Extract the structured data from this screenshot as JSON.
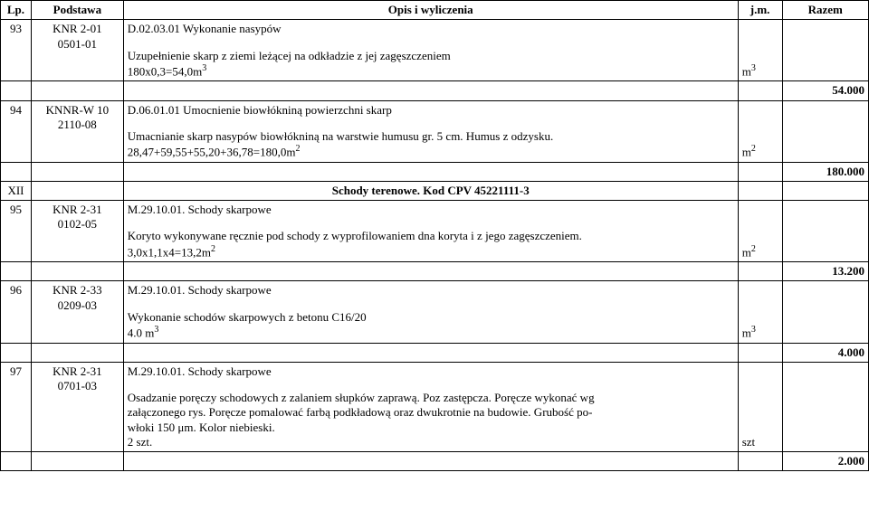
{
  "headers": {
    "lp": "Lp.",
    "podstawa": "Podstawa",
    "opis": "Opis i wyliczenia",
    "jm": "j.m.",
    "razem": "Razem"
  },
  "rows": [
    {
      "lp": "93",
      "podstawa_line1": "KNR 2-01",
      "podstawa_line2": "0501-01",
      "opis_top": "D.02.03.01 Wykonanie nasypów",
      "opis_body": "Uzupełnienie skarp z ziemi leżącej na odkładzie z jej zagęszczeniem\n180x0,3=54,0m",
      "opis_sup": "3",
      "jm_text": "m",
      "jm_sup": "3",
      "razem": ""
    },
    {
      "lp": "",
      "podstawa_line1": "",
      "podstawa_line2": "",
      "opis_top": "",
      "opis_body": "",
      "opis_sup": "",
      "jm_text": "",
      "jm_sup": "",
      "razem": "54.000",
      "razem_bold": true
    },
    {
      "lp": "94",
      "podstawa_line1": "KNNR-W 10",
      "podstawa_line2": "2110-08",
      "opis_top": "D.06.01.01 Umocnienie biowłókniną powierzchni skarp",
      "opis_body": "Umacnianie skarp nasypów biowłókniną na warstwie humusu gr. 5 cm. Humus z odzysku.\n28,47+59,55+55,20+36,78=180,0m",
      "opis_sup": "2",
      "jm_text": "m",
      "jm_sup": "2",
      "razem": ""
    },
    {
      "lp": "",
      "podstawa_line1": "",
      "podstawa_line2": "",
      "opis_top": "",
      "opis_body": "",
      "opis_sup": "",
      "jm_text": "",
      "jm_sup": "",
      "razem": "180.000",
      "razem_bold": true
    },
    {
      "section_xii": true,
      "lp": "XII",
      "opis_center": "Schody terenowe. Kod CPV 45221111-3"
    },
    {
      "lp": "95",
      "podstawa_line1": "KNR 2-31",
      "podstawa_line2": "0102-05",
      "opis_top": "M.29.10.01. Schody skarpowe",
      "opis_body": "Koryto wykonywane ręcznie pod schody z wyprofilowaniem dna koryta i z jego zagęszczeniem.\n3,0x1,1x4=13,2m",
      "opis_sup": "2",
      "jm_text": "m",
      "jm_sup": "2",
      "razem": ""
    },
    {
      "lp": "",
      "podstawa_line1": "",
      "podstawa_line2": "",
      "opis_top": "",
      "opis_body": "",
      "opis_sup": "",
      "jm_text": "",
      "jm_sup": "",
      "razem": "13.200",
      "razem_bold": true
    },
    {
      "lp": "96",
      "podstawa_line1": "KNR 2-33",
      "podstawa_line2": "0209-03",
      "opis_top": "M.29.10.01. Schody skarpowe",
      "opis_body": "Wykonanie schodów skarpowych z betonu C16/20\n4.0 m",
      "opis_sup": "3",
      "jm_text": "m",
      "jm_sup": "3",
      "jm_inline": true,
      "razem": ""
    },
    {
      "lp": "",
      "podstawa_line1": "",
      "podstawa_line2": "",
      "opis_top": "",
      "opis_body": "",
      "opis_sup": "",
      "jm_text": "",
      "jm_sup": "",
      "razem": "4.000",
      "razem_bold": true
    },
    {
      "lp": "97",
      "podstawa_line1": "KNR 2-31",
      "podstawa_line2": "0701-03",
      "opis_top": "M.29.10.01. Schody skarpowe",
      "opis_body": "Osadzanie poręczy schodowych z zalaniem słupków zaprawą. Poz zastępcza. Poręcze wykonać wg\nzałączonego rys. Poręcze pomalować farbą podkładową oraz dwukrotnie na budowie. Grubość po-\nwłoki 150 μm. Kolor niebieski.\n2 szt.",
      "opis_sup": "",
      "jm_text": "szt",
      "jm_sup": "",
      "jm_inline": true,
      "razem": ""
    },
    {
      "lp": "",
      "podstawa_line1": "",
      "podstawa_line2": "",
      "opis_top": "",
      "opis_body": "",
      "opis_sup": "",
      "jm_text": "",
      "jm_sup": "",
      "razem": "2.000",
      "razem_bold": true
    }
  ]
}
